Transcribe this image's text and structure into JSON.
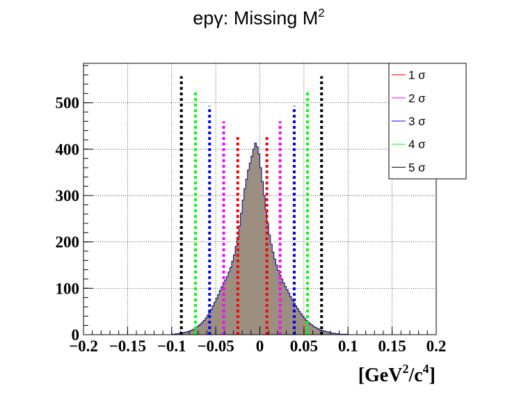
{
  "chart_data": {
    "type": "histogram",
    "title": "epγ: Missing M",
    "title_superscript": "2",
    "xlabel": {
      "prefix": "[GeV",
      "sup1": "2",
      "middle": "/c",
      "sup2": "4",
      "suffix": "]"
    },
    "ylabel": "",
    "xlim": [
      -0.2,
      0.2
    ],
    "ylim": [
      0,
      585
    ],
    "x_ticks": [
      -0.2,
      -0.15,
      -0.1,
      -0.05,
      0,
      0.05,
      0.1,
      0.15,
      0.2
    ],
    "x_tick_labels": [
      "−0.2",
      "−0.15",
      "−0.1",
      "−0.05",
      "0",
      "0.05",
      "0.1",
      "0.15",
      "0.2"
    ],
    "y_ticks": [
      0,
      100,
      200,
      300,
      400,
      500
    ],
    "y_tick_labels": [
      "0",
      "100",
      "200",
      "300",
      "400",
      "500"
    ],
    "grid": true,
    "bin_width": 0.002,
    "bin_start": -0.1,
    "histogram_fill": "#9c8f82",
    "histogram_line": "#000080",
    "counts": [
      1,
      1,
      2,
      2,
      3,
      3,
      4,
      5,
      6,
      7,
      8,
      10,
      12,
      14,
      17,
      20,
      23,
      27,
      31,
      36,
      42,
      48,
      55,
      62,
      70,
      78,
      86,
      95,
      103,
      110,
      118,
      125,
      135,
      145,
      158,
      172,
      190,
      210,
      235,
      262,
      290,
      315,
      335,
      355,
      370,
      385,
      400,
      413,
      405,
      390,
      360,
      330,
      300,
      270,
      240,
      215,
      195,
      178,
      163,
      150,
      139,
      129,
      120,
      112,
      104,
      97,
      90,
      82,
      75,
      68,
      62,
      56,
      50,
      45,
      40,
      35,
      31,
      27,
      24,
      21,
      18,
      16,
      14,
      12,
      10,
      9,
      8,
      7,
      6,
      5,
      4,
      3,
      3,
      2,
      2,
      1,
      1,
      1,
      1,
      1
    ],
    "sigma_lines": [
      {
        "name": "1 σ",
        "color": "#ff0000",
        "low": -0.025,
        "high": 0.008,
        "height": 430
      },
      {
        "name": "2 σ",
        "color": "#ff00ff",
        "low": -0.041,
        "high": 0.023,
        "height": 460
      },
      {
        "name": "3 σ",
        "color": "#0000ff",
        "low": -0.057,
        "high": 0.039,
        "height": 493
      },
      {
        "name": "4 σ",
        "color": "#00ff00",
        "low": -0.073,
        "high": 0.054,
        "height": 525
      },
      {
        "name": "5 σ",
        "color": "#000000",
        "low": -0.089,
        "high": 0.07,
        "height": 557
      }
    ],
    "legend": [
      {
        "label": "1 σ",
        "color": "#ff0000"
      },
      {
        "label": "2 σ",
        "color": "#ff00ff"
      },
      {
        "label": "3 σ",
        "color": "#0000ff"
      },
      {
        "label": "4 σ",
        "color": "#00ff00"
      },
      {
        "label": "5 σ",
        "color": "#000000"
      }
    ],
    "legend_position": "top-right"
  }
}
